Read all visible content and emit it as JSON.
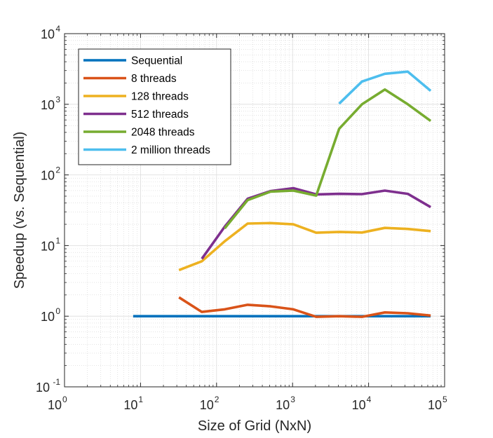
{
  "chart_data": {
    "type": "line",
    "title": "",
    "xlabel": "Size of Grid (NxN)",
    "ylabel": "Speedup (vs. Sequential)",
    "x_scale": "log",
    "y_scale": "log",
    "xlim": [
      1,
      100000
    ],
    "ylim": [
      0.1,
      10000
    ],
    "x_ticks": [
      {
        "base": "10",
        "exp": "0"
      },
      {
        "base": "10",
        "exp": "1"
      },
      {
        "base": "10",
        "exp": "2"
      },
      {
        "base": "10",
        "exp": "3"
      },
      {
        "base": "10",
        "exp": "4"
      },
      {
        "base": "10",
        "exp": "5"
      }
    ],
    "y_ticks": [
      {
        "base": "10",
        "exp": "-1"
      },
      {
        "base": "10",
        "exp": "0"
      },
      {
        "base": "10",
        "exp": "1"
      },
      {
        "base": "10",
        "exp": "2"
      },
      {
        "base": "10",
        "exp": "3"
      },
      {
        "base": "10",
        "exp": "4"
      }
    ],
    "grid": true,
    "minor_grid": true,
    "legend_position": "top-left",
    "series": [
      {
        "name": "Sequential",
        "color": "#0072BD",
        "x": [
          8,
          16,
          32,
          64,
          128,
          256,
          512,
          1024,
          2048,
          4096,
          8192,
          16384,
          32768,
          65536
        ],
        "y": [
          1,
          1,
          1,
          1,
          1,
          1,
          1,
          1,
          1,
          1,
          1,
          1,
          1,
          1
        ]
      },
      {
        "name": "8 threads",
        "color": "#D95319",
        "x": [
          32,
          64,
          128,
          256,
          512,
          1024,
          2048,
          4096,
          8192,
          16384,
          32768,
          65536
        ],
        "y": [
          1.85,
          1.15,
          1.25,
          1.45,
          1.38,
          1.25,
          0.98,
          1.0,
          0.98,
          1.13,
          1.1,
          1.02
        ]
      },
      {
        "name": "128 threads",
        "color": "#EDB120",
        "x": [
          32,
          64,
          128,
          256,
          512,
          1024,
          2048,
          4096,
          8192,
          16384,
          32768,
          65536
        ],
        "y": [
          4.5,
          6.0,
          11.5,
          20.5,
          20.8,
          20.0,
          15.2,
          15.6,
          15.3,
          17.8,
          17.2,
          16.0
        ]
      },
      {
        "name": "512 threads",
        "color": "#7E2F8E",
        "x": [
          64,
          128,
          256,
          512,
          1024,
          2048,
          4096,
          8192,
          16384,
          32768,
          65536
        ],
        "y": [
          6.5,
          18.5,
          46,
          59,
          65,
          53,
          54,
          53.5,
          60,
          54,
          35
        ]
      },
      {
        "name": "2048 threads",
        "color": "#77AC30",
        "x": [
          128,
          256,
          512,
          1024,
          2048,
          4096,
          8192,
          16384,
          32768,
          65536
        ],
        "y": [
          17.5,
          44,
          58,
          60,
          51,
          450,
          1000,
          1620,
          1000,
          580
        ]
      },
      {
        "name": "2 million threads",
        "color": "#4DBEEE",
        "x": [
          4096,
          8192,
          16384,
          32768,
          65536
        ],
        "y": [
          1020,
          2100,
          2700,
          2900,
          1550
        ]
      }
    ]
  }
}
